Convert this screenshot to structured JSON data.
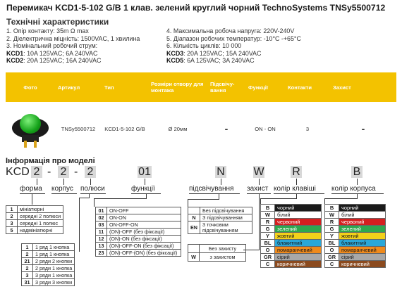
{
  "title": "Перемикач KCD1-5-102 G/B 1 клав. зелений круглий чорний TechnoSystems TNSy5500712",
  "subtitle": "Технічні характеристики",
  "specs_left": [
    "1. Опір контакту: 35m Ω  max",
    "2. Діелектрична міцність:  1500VAC, 1 хвилина",
    "3. Номінальний робочий струм:"
  ],
  "specs_left_current": [
    {
      "k": "KCD1",
      "v": ": 10A 125VAC; 6A 240VAC"
    },
    {
      "k": "KCD2",
      "v": ": 20A 125VAC; 16A 240VAC"
    }
  ],
  "specs_right": [
    "4. Максимальна робоча напруга: 220V-240V",
    "5. Діапазон робочих температур: -10°C -+65°C",
    "6. Кількість циклів: 10 000"
  ],
  "specs_right_current": [
    {
      "k": "KCD3",
      "v": ": 20A 125VAC; 15A 240VAC"
    },
    {
      "k": "KCD5",
      "v": ": 6A 125VAC; 3A 240VAC"
    }
  ],
  "table": {
    "headers": [
      "Фото",
      "Артикул",
      "Тип",
      "Розміри отвору для монтажа",
      "Підсвічу-вання",
      "Функції",
      "Контакти",
      "Захист"
    ],
    "row": [
      "",
      "TNSy5500712",
      "KCD1-5-102 G/B",
      "Ø 20мм",
      "-",
      "ON - ON",
      "3",
      "-"
    ]
  },
  "info_title": "Інформація про моделі",
  "code": {
    "prefix": "KCD",
    "p1": "2",
    "d1": "-",
    "p2": "2",
    "d2": "-",
    "p3": "2",
    "p4": "01",
    "p5": "N",
    "p6": "W",
    "p7": "R",
    "p8": "B"
  },
  "labels": {
    "forma": "форма",
    "korpus": "корпус",
    "polyusy": "полюси",
    "funktsii": "функції",
    "pidsvich": "підсвічування",
    "zakhyst": "захист",
    "kolir_klav": "колір клавіші",
    "kolir_korp": "колір корпуса"
  },
  "forma": [
    {
      "k": "1",
      "v": "мініатюрні"
    },
    {
      "k": "2",
      "v": "середні 2 полюси"
    },
    {
      "k": "3",
      "v": "середні 1 полюс"
    },
    {
      "k": "5",
      "v": "надмініатюрні"
    }
  ],
  "polyusy": [
    {
      "k": "1",
      "v": "1 ряд 1 кнопка"
    },
    {
      "k": "2",
      "v": "1 ряд 1 кнопка"
    },
    {
      "k": "21",
      "v": "2 ряди 2 кнопки"
    },
    {
      "k": "2",
      "v": "2 ряди 1 кнопка"
    },
    {
      "k": "3",
      "v": "3 ряди 1 кнопка"
    },
    {
      "k": "31",
      "v": "3 ряди 3 кнопки"
    }
  ],
  "funktsii": [
    {
      "k": "01",
      "v": "ON-OFF"
    },
    {
      "k": "02",
      "v": "ON-ON"
    },
    {
      "k": "03",
      "v": "ON-OFF-ON"
    },
    {
      "k": "11",
      "v": "(ON)-OFF (без фіксації)"
    },
    {
      "k": "12",
      "v": "(ON)-ON (без фіксації)"
    },
    {
      "k": "13",
      "v": "(ON)-OFF-ON (без фіксації)"
    },
    {
      "k": "23",
      "v": "(ON)-OFF-(ON) (без фіксації)"
    }
  ],
  "pidsvich": [
    {
      "k": "",
      "v": "Без підсвічування"
    },
    {
      "k": "N",
      "v": "З підсвічуванням"
    },
    {
      "k": "EN",
      "v": "3 точковим підсвічуванням"
    }
  ],
  "zakhyst": [
    {
      "k": "",
      "v": "Без захисту"
    },
    {
      "k": "W",
      "v": "з захистом"
    }
  ],
  "kolir_klav": [
    {
      "k": "B",
      "v": "чорний",
      "color": "#1a1a1a",
      "text": "#ffffff"
    },
    {
      "k": "W",
      "v": "білий",
      "color": "#ffffff",
      "text": "#1a1a1a"
    },
    {
      "k": "R",
      "v": "червоний",
      "color": "#d42020",
      "text": "#ffffff"
    },
    {
      "k": "G",
      "v": "зелений",
      "color": "#2fa84f",
      "text": "#ffffff"
    },
    {
      "k": "Y",
      "v": "жовтий",
      "color": "#f3d11a",
      "text": "#1a1a1a"
    },
    {
      "k": "BL",
      "v": "блакитний",
      "color": "#2aa7d8",
      "text": "#1a1a1a"
    },
    {
      "k": "O",
      "v": "помаранчевий",
      "color": "#ef8a1c",
      "text": "#1a1a1a"
    },
    {
      "k": "GR",
      "v": "сірий",
      "color": "#a8a8a8",
      "text": "#1a1a1a"
    },
    {
      "k": "C",
      "v": "коричневий",
      "color": "#8b4a1e",
      "text": "#ffffff"
    }
  ],
  "kolir_korp": [
    {
      "k": "B",
      "v": "чорний",
      "color": "#1a1a1a",
      "text": "#ffffff"
    },
    {
      "k": "W",
      "v": "білий",
      "color": "#ffffff",
      "text": "#1a1a1a"
    },
    {
      "k": "R",
      "v": "червоний",
      "color": "#d42020",
      "text": "#ffffff"
    },
    {
      "k": "G",
      "v": "зелений",
      "color": "#2fa84f",
      "text": "#ffffff"
    },
    {
      "k": "Y",
      "v": "жовтий",
      "color": "#f3d11a",
      "text": "#1a1a1a"
    },
    {
      "k": "BL",
      "v": "блакитний",
      "color": "#2aa7d8",
      "text": "#1a1a1a"
    },
    {
      "k": "O",
      "v": "помаранчевий",
      "color": "#ef8a1c",
      "text": "#1a1a1a"
    },
    {
      "k": "GR",
      "v": "сірий",
      "color": "#a8a8a8",
      "text": "#1a1a1a"
    },
    {
      "k": "C",
      "v": "коричневий",
      "color": "#8b4a1e",
      "text": "#ffffff"
    }
  ],
  "accent": "#f3c200"
}
